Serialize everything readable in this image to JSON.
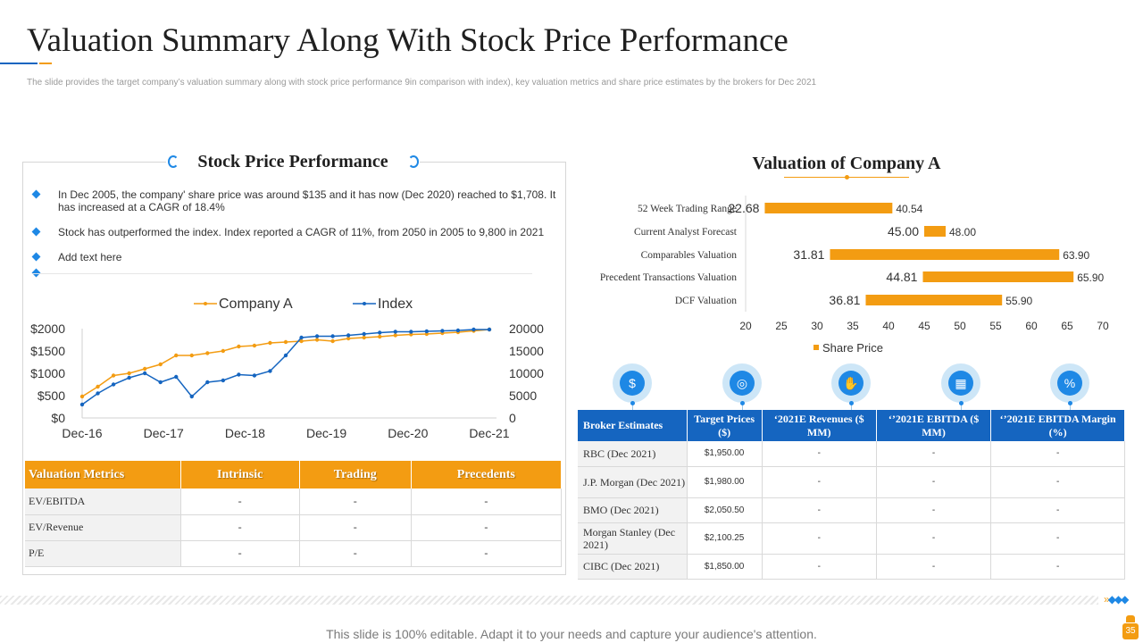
{
  "title": "Valuation Summary Along With Stock Price Performance",
  "subtitle": "The slide provides the target company’s valuation summary along with stock price performance 9in comparison with index), key valuation metrics and share price estimates by the brokers for Dec 2021",
  "stock_panel": {
    "heading": "Stock Price Performance",
    "bullets": [
      "In Dec 2005, the company' share price was around $135 and it has now (Dec 2020) reached to $1,708. It has increased at a CAGR of 18.4%",
      "Stock has outperformed the index. Index reported a CAGR of 11%, from 2050 in 2005 to 9,800 in 2021",
      "Add text here"
    ]
  },
  "colors": {
    "orange": "#f39c12",
    "blue": "#1565c0",
    "light_blue": "#1e88e5"
  },
  "chart_data": [
    {
      "type": "line",
      "title": "",
      "legend": [
        "Company A",
        "Index"
      ],
      "legend_position": "top",
      "x_tick_labels": [
        "Dec-16",
        "Dec-17",
        "Dec-18",
        "Dec-19",
        "Dec-20",
        "Dec-21"
      ],
      "left_axis": {
        "ticks": [
          "$0",
          "$500",
          "$1000",
          "$1500",
          "$2000"
        ],
        "ylim": [
          0,
          2000
        ]
      },
      "right_axis": {
        "ticks": [
          "0",
          "5000",
          "10000",
          "15000",
          "20000"
        ],
        "ylim": [
          0,
          20000
        ]
      },
      "series": [
        {
          "name": "Company A",
          "axis": "left",
          "color": "#f39c12",
          "values": [
            480,
            700,
            950,
            1000,
            1100,
            1200,
            1400,
            1400,
            1450,
            1500,
            1600,
            1620,
            1680,
            1700,
            1720,
            1750,
            1720,
            1780,
            1800,
            1820,
            1850,
            1870,
            1880,
            1900,
            1920,
            1950,
            1980
          ]
        },
        {
          "name": "Index",
          "axis": "right",
          "color": "#1565c0",
          "values": [
            3000,
            5500,
            7500,
            9000,
            10000,
            8000,
            9200,
            4800,
            8000,
            8400,
            9700,
            9500,
            10500,
            14000,
            18000,
            18300,
            18300,
            18500,
            18800,
            19100,
            19300,
            19300,
            19400,
            19500,
            19600,
            19800,
            19800
          ]
        }
      ]
    },
    {
      "type": "bar",
      "title": "Valuation of Company A",
      "orientation": "horizontal-floating",
      "categories": [
        "52 Week Trading Range",
        "Current Analyst Forecast",
        "Comparables Valuation",
        "Precedent Transactions Valuation",
        "DCF Valuation"
      ],
      "low_labels": [
        "22.68",
        "45.00",
        "31.81",
        "44.81",
        "36.81"
      ],
      "high_labels": [
        "40.54",
        "48.00",
        "63.90",
        "65.90",
        "55.90"
      ],
      "low": [
        22.68,
        45.0,
        31.81,
        44.81,
        36.81
      ],
      "high": [
        40.54,
        48.0,
        63.9,
        65.9,
        55.9
      ],
      "xlim": [
        20,
        70
      ],
      "x_ticks": [
        "20",
        "25",
        "30",
        "35",
        "40",
        "45",
        "50",
        "55",
        "60",
        "65",
        "70"
      ],
      "legend": "Share Price",
      "color": "#f39c12"
    }
  ],
  "valuation_metrics_table": {
    "headers": [
      "Valuation Metrics",
      "Intrinsic",
      "Trading",
      "Precedents"
    ],
    "rows": [
      [
        "EV/EBITDA",
        "-",
        "-",
        "-"
      ],
      [
        "EV/Revenue",
        "-",
        "-",
        "-"
      ],
      [
        "P/E",
        "-",
        "-",
        "-"
      ]
    ]
  },
  "broker_icons": [
    "money-bag-icon",
    "target-icon",
    "hand-coin-icon",
    "calculator-icon",
    "percent-docs-icon"
  ],
  "broker_table": {
    "headers": [
      "Broker Estimates",
      "Target Prices ($)",
      "‘2021E Revenues ($ MM)",
      "‘’2021E EBITDA ($ MM)",
      "‘’2021E EBITDA Margin (%)"
    ],
    "rows": [
      [
        "RBC (Dec 2021)",
        "$1,950.00",
        "-",
        "-",
        "-"
      ],
      [
        "J.P. Morgan (Dec 2021)",
        "$1,980.00",
        "-",
        "-",
        "-"
      ],
      [
        "BMO (Dec 2021)",
        "$2,050.50",
        "-",
        "-",
        "-"
      ],
      [
        "Morgan Stanley (Dec 2021)",
        "$2,100.25",
        "-",
        "-",
        "-"
      ],
      [
        "CIBC (Dec 2021)",
        "$1,850.00",
        "-",
        "-",
        "-"
      ]
    ]
  },
  "footer": {
    "text": "This slide is 100% editable. Adapt it to your needs and capture your audience's attention.",
    "page_number": "35"
  }
}
